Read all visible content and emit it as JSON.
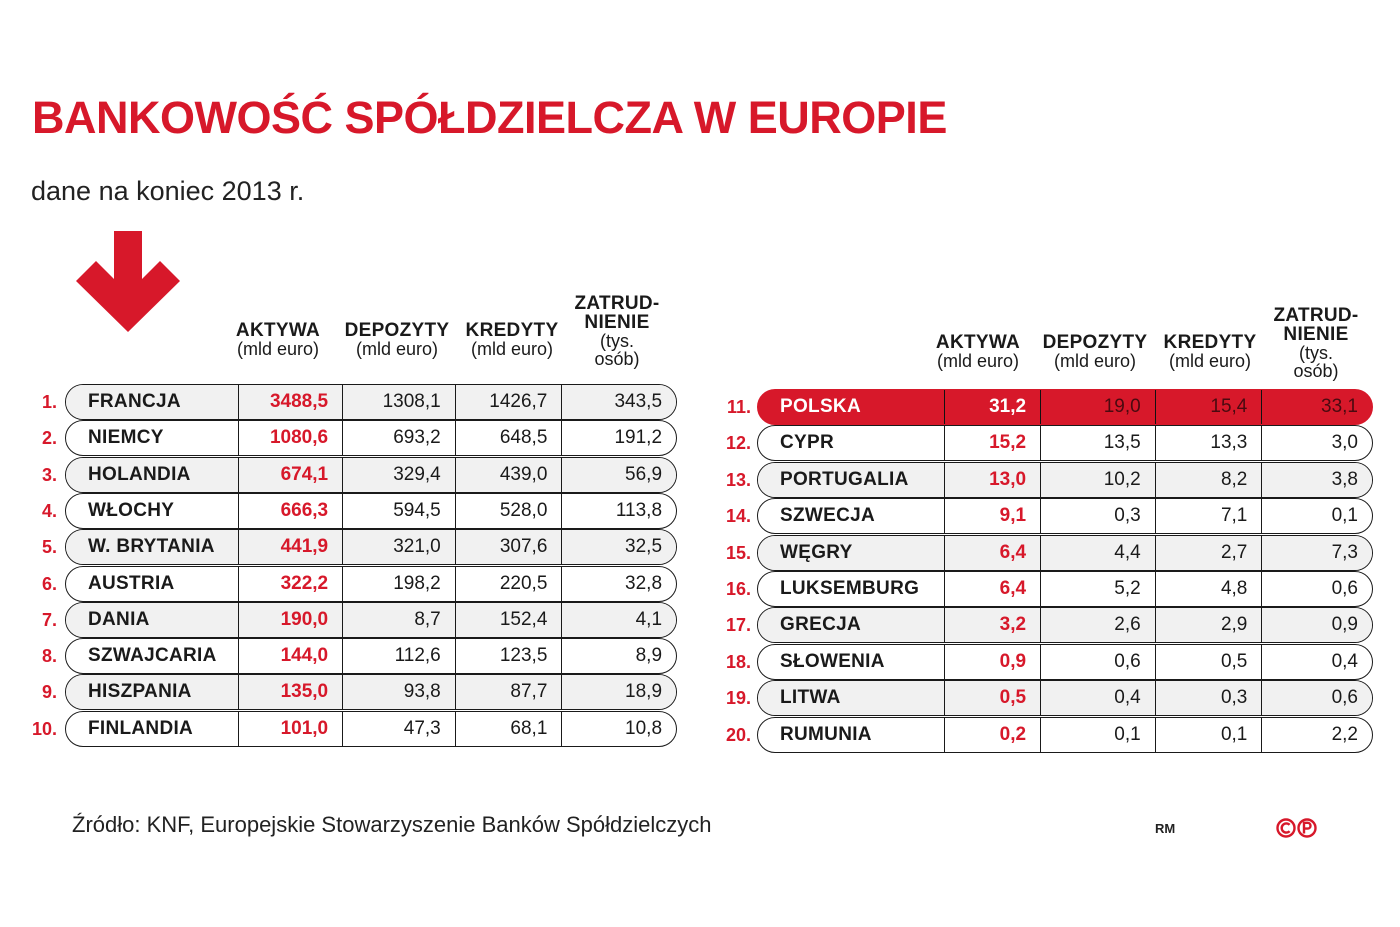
{
  "title": "BANKOWOŚĆ SPÓŁDZIELCZA W EUROPIE",
  "subtitle": "dane na koniec 2013 r.",
  "source": "Źródło: KNF, Europejskie Stowarzyszenie Banków Spółdzielczych",
  "author": "RM",
  "colors": {
    "accent": "#d7182a",
    "row_shade": "#f1f1f1",
    "text": "#1a1a1a"
  },
  "icons": {
    "arrow": "arrow-down-icon",
    "logo": "cp-logo-icon"
  },
  "columns": [
    {
      "key": "aktywa",
      "label": "AKTYWA",
      "unit": "(mld euro)"
    },
    {
      "key": "depozyty",
      "label": "DEPOZYTY",
      "unit": "(mld euro)"
    },
    {
      "key": "kredyty",
      "label": "KREDYTY",
      "unit": "(mld euro)"
    },
    {
      "key": "zatrudnienie",
      "label_line1": "ZATRUD-",
      "label_line2": "NIENIE",
      "unit_line1": "(tys.",
      "unit_line2": "osób)"
    }
  ],
  "chart_data": {
    "type": "table",
    "title": "BANKOWOŚĆ SPÓŁDZIELCZA W EUROPIE",
    "subtitle": "dane na koniec 2013 r.",
    "highlighted": "POLSKA",
    "rows": [
      {
        "rank": "1.",
        "country": "FRANCJA",
        "aktywa": "3488,5",
        "depozyty": "1308,1",
        "kredyty": "1426,7",
        "zatrudnienie": "343,5"
      },
      {
        "rank": "2.",
        "country": "NIEMCY",
        "aktywa": "1080,6",
        "depozyty": "693,2",
        "kredyty": "648,5",
        "zatrudnienie": "191,2"
      },
      {
        "rank": "3.",
        "country": "HOLANDIA",
        "aktywa": "674,1",
        "depozyty": "329,4",
        "kredyty": "439,0",
        "zatrudnienie": "56,9"
      },
      {
        "rank": "4.",
        "country": "WŁOCHY",
        "aktywa": "666,3",
        "depozyty": "594,5",
        "kredyty": "528,0",
        "zatrudnienie": "113,8"
      },
      {
        "rank": "5.",
        "country": "W. BRYTANIA",
        "aktywa": "441,9",
        "depozyty": "321,0",
        "kredyty": "307,6",
        "zatrudnienie": "32,5"
      },
      {
        "rank": "6.",
        "country": "AUSTRIA",
        "aktywa": "322,2",
        "depozyty": "198,2",
        "kredyty": "220,5",
        "zatrudnienie": "32,8"
      },
      {
        "rank": "7.",
        "country": "DANIA",
        "aktywa": "190,0",
        "depozyty": "8,7",
        "kredyty": "152,4",
        "zatrudnienie": "4,1"
      },
      {
        "rank": "8.",
        "country": "SZWAJCARIA",
        "aktywa": "144,0",
        "depozyty": "112,6",
        "kredyty": "123,5",
        "zatrudnienie": "8,9"
      },
      {
        "rank": "9.",
        "country": "HISZPANIA",
        "aktywa": "135,0",
        "depozyty": "93,8",
        "kredyty": "87,7",
        "zatrudnienie": "18,9"
      },
      {
        "rank": "10.",
        "country": "FINLANDIA",
        "aktywa": "101,0",
        "depozyty": "47,3",
        "kredyty": "68,1",
        "zatrudnienie": "10,8"
      },
      {
        "rank": "11.",
        "country": "POLSKA",
        "aktywa": "31,2",
        "depozyty": "19,0",
        "kredyty": "15,4",
        "zatrudnienie": "33,1"
      },
      {
        "rank": "12.",
        "country": "CYPR",
        "aktywa": "15,2",
        "depozyty": "13,5",
        "kredyty": "13,3",
        "zatrudnienie": "3,0"
      },
      {
        "rank": "13.",
        "country": "PORTUGALIA",
        "aktywa": "13,0",
        "depozyty": "10,2",
        "kredyty": "8,2",
        "zatrudnienie": "3,8"
      },
      {
        "rank": "14.",
        "country": "SZWECJA",
        "aktywa": "9,1",
        "depozyty": "0,3",
        "kredyty": "7,1",
        "zatrudnienie": "0,1"
      },
      {
        "rank": "15.",
        "country": "WĘGRY",
        "aktywa": "6,4",
        "depozyty": "4,4",
        "kredyty": "2,7",
        "zatrudnienie": "7,3"
      },
      {
        "rank": "16.",
        "country": "LUKSEMBURG",
        "aktywa": "6,4",
        "depozyty": "5,2",
        "kredyty": "4,8",
        "zatrudnienie": "0,6"
      },
      {
        "rank": "17.",
        "country": "GRECJA",
        "aktywa": "3,2",
        "depozyty": "2,6",
        "kredyty": "2,9",
        "zatrudnienie": "0,9"
      },
      {
        "rank": "18.",
        "country": "SŁOWENIA",
        "aktywa": "0,9",
        "depozyty": "0,6",
        "kredyty": "0,5",
        "zatrudnienie": "0,4"
      },
      {
        "rank": "19.",
        "country": "LITWA",
        "aktywa": "0,5",
        "depozyty": "0,4",
        "kredyty": "0,3",
        "zatrudnienie": "0,6"
      },
      {
        "rank": "20.",
        "country": "RUMUNIA",
        "aktywa": "0,2",
        "depozyty": "0,1",
        "kredyty": "0,1",
        "zatrudnienie": "2,2"
      }
    ]
  }
}
